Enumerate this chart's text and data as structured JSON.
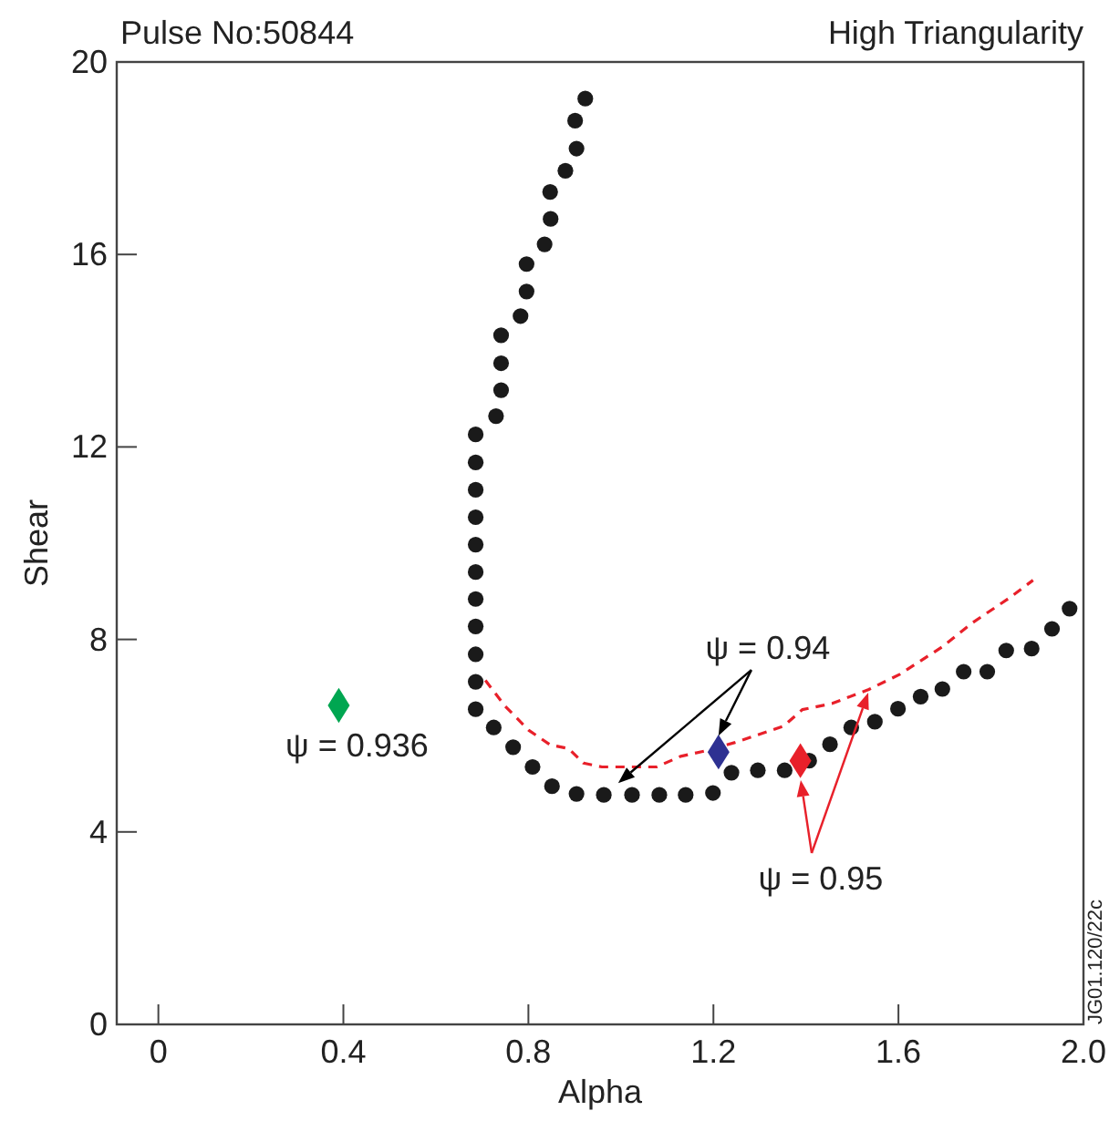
{
  "chart_data": {
    "type": "scatter",
    "title": "Pulse No:50844",
    "subtitle": "High Triangularity",
    "xlabel": "Alpha",
    "ylabel": "Shear",
    "xlim": [
      -0.09,
      2.0
    ],
    "ylim": [
      0,
      20
    ],
    "xticks": [
      0,
      0.4,
      0.8,
      1.2,
      1.6,
      {
        "value": 2,
        "label": "2.0"
      }
    ],
    "yticks": [
      0,
      4,
      8,
      12,
      16,
      20
    ],
    "marker": "circle",
    "series": [
      {
        "color": "#1a1a1a",
        "x": [
          0.923,
          0.901,
          0.904,
          0.88,
          0.847,
          0.848,
          0.835,
          0.796,
          0.796,
          0.783,
          0.741,
          0.741,
          0.741,
          0.73,
          0.686,
          0.686,
          0.686,
          0.686,
          0.686,
          0.686,
          0.686,
          0.686,
          0.686,
          0.686,
          0.686,
          0.725,
          0.767,
          0.809,
          0.851,
          0.904,
          0.963,
          1.024,
          1.083,
          1.14,
          1.199,
          1.239,
          1.296,
          1.354,
          1.407,
          1.452,
          1.498,
          1.549,
          1.599,
          1.648,
          1.695,
          1.741,
          1.792,
          1.833,
          1.888,
          1.932,
          1.97
        ],
        "values": [
          19.24,
          18.78,
          18.2,
          17.74,
          17.3,
          16.74,
          16.21,
          15.8,
          15.23,
          14.72,
          14.32,
          13.74,
          13.18,
          12.64,
          12.26,
          11.68,
          11.11,
          10.54,
          9.97,
          9.4,
          8.84,
          8.27,
          7.69,
          7.12,
          6.55,
          6.17,
          5.76,
          5.35,
          4.95,
          4.79,
          4.77,
          4.77,
          4.77,
          4.77,
          4.81,
          5.23,
          5.28,
          5.28,
          5.48,
          5.82,
          6.17,
          6.29,
          6.56,
          6.81,
          6.97,
          7.33,
          7.33,
          7.77,
          7.81,
          8.22,
          8.64
        ]
      },
      {
        "type": "line",
        "color": "#e8202a",
        "line_style": "dashed",
        "marker": "none",
        "x": [
          0.707,
          0.749,
          0.801,
          0.847,
          0.887,
          0.919,
          0.959,
          1.077,
          1.129,
          1.181,
          1.247,
          1.352,
          1.392,
          1.457,
          1.536,
          1.602,
          1.694,
          1.759,
          1.838,
          1.891
        ],
        "values": [
          7.15,
          6.62,
          6.11,
          5.81,
          5.73,
          5.43,
          5.35,
          5.35,
          5.57,
          5.68,
          5.86,
          6.2,
          6.54,
          6.67,
          6.96,
          7.27,
          7.84,
          8.34,
          8.85,
          9.23
        ]
      },
      {
        "color": "#00a651",
        "marker": "diamond",
        "x": [
          0.39
        ],
        "values": [
          6.63
        ]
      },
      {
        "color": "#2e3192",
        "marker": "diamond",
        "x": [
          1.211
        ],
        "values": [
          5.66
        ]
      },
      {
        "color": "#e8202a",
        "marker": "diamond",
        "x": [
          1.388
        ],
        "values": [
          5.48
        ]
      }
    ],
    "annotations": [
      {
        "text": "ψ = 0.936",
        "x": 0.39,
        "y": 6.63
      },
      {
        "text": "ψ  = 0.94",
        "x": 1.211,
        "y": 5.66
      },
      "ψ = 0.95",
      "JG01.120/22c"
    ]
  }
}
